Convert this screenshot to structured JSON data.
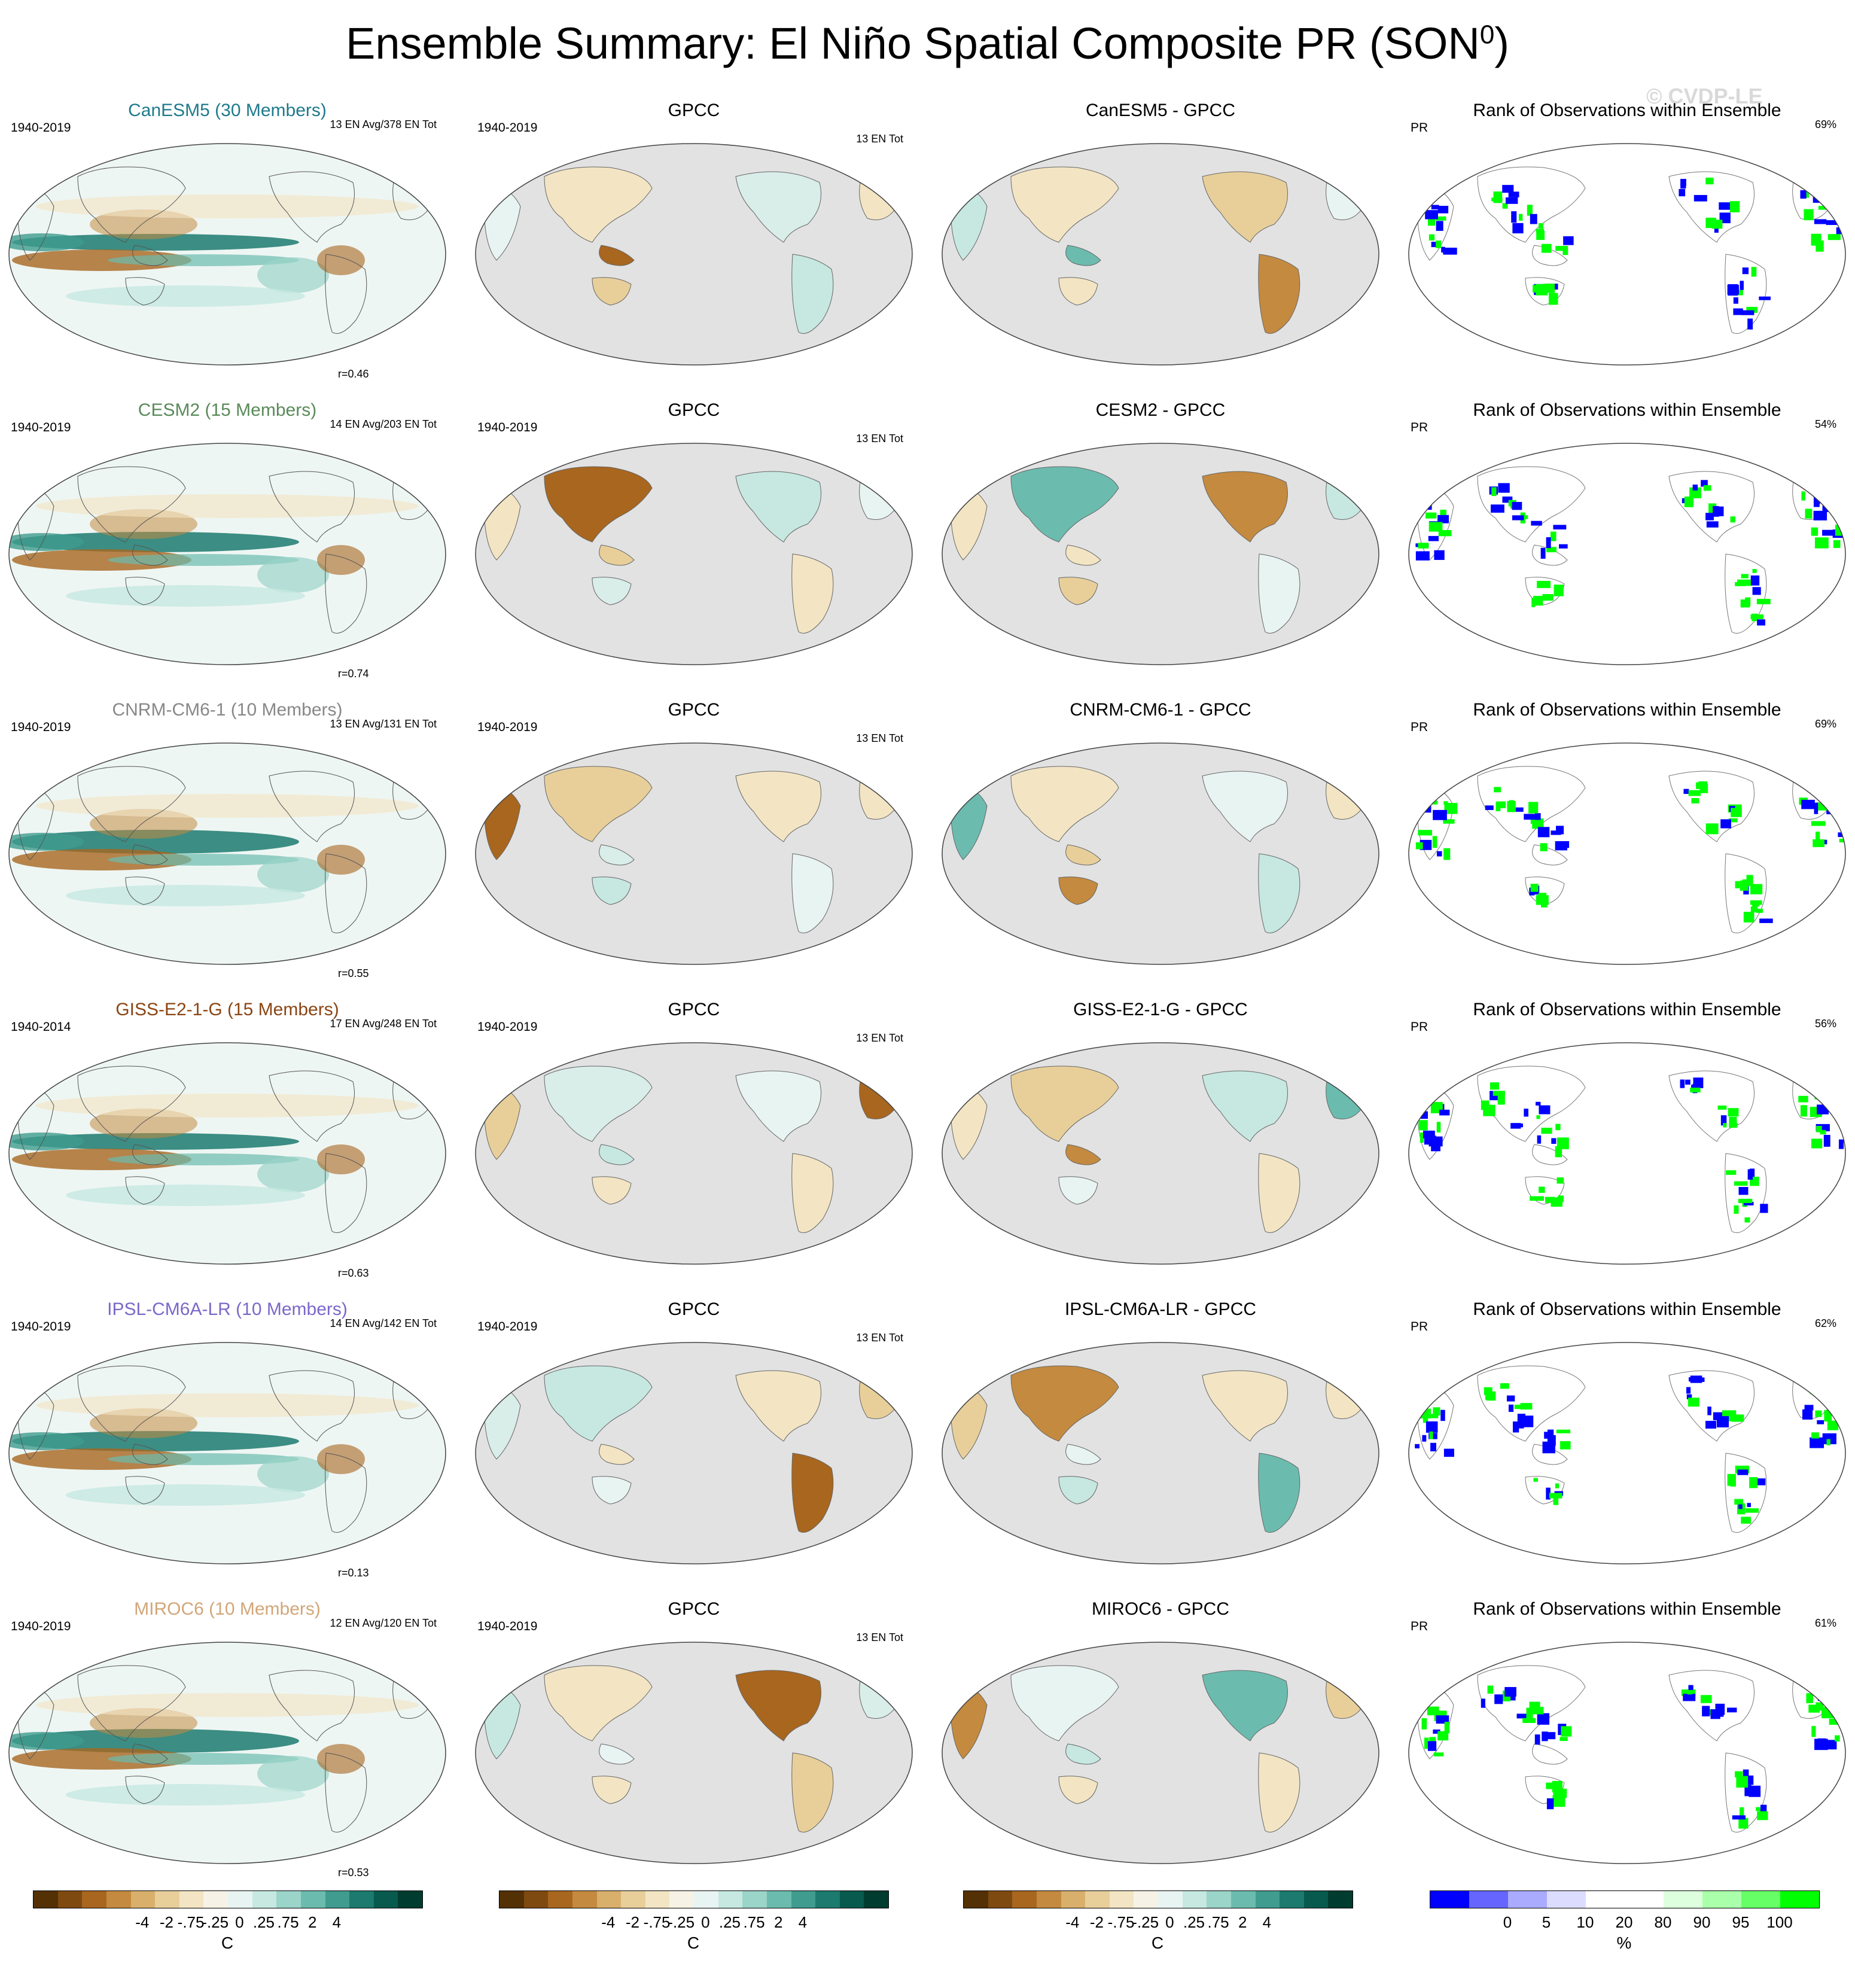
{
  "page": {
    "title_main": "Ensemble Summary: El Niño Spatial Composite PR (SON",
    "title_sup": "0",
    "title_end": ")",
    "watermark": "© CVDP-LE"
  },
  "rows": [
    {
      "model_title": "CanESM5 (30 Members)",
      "model_color": "#1f7a8c",
      "period": "1940-2019",
      "en_line1": "13 EN Avg/378 EN Tot",
      "corr": "r=0.46",
      "obs_title": "GPCC",
      "obs_period": "1940-2019",
      "obs_count": "13 EN Tot",
      "diff_title": "CanESM5 - GPCC",
      "rank_title": "Rank of Observations within Ensemble",
      "rank_var": "PR",
      "rank_pct": "69%"
    },
    {
      "model_title": "CESM2 (15 Members)",
      "model_color": "#5a8a5a",
      "period": "1940-2019",
      "en_line1": "14 EN Avg/203 EN Tot",
      "corr": "r=0.74",
      "obs_title": "GPCC",
      "obs_period": "1940-2019",
      "obs_count": "13 EN Tot",
      "diff_title": "CESM2 - GPCC",
      "rank_title": "Rank of Observations within Ensemble",
      "rank_var": "PR",
      "rank_pct": "54%"
    },
    {
      "model_title": "CNRM-CM6-1 (10 Members)",
      "model_color": "#888888",
      "period": "1940-2019",
      "en_line1": "13 EN Avg/131 EN Tot",
      "corr": "r=0.55",
      "obs_title": "GPCC",
      "obs_period": "1940-2019",
      "obs_count": "13 EN Tot",
      "diff_title": "CNRM-CM6-1 - GPCC",
      "rank_title": "Rank of Observations within Ensemble",
      "rank_var": "PR",
      "rank_pct": "69%"
    },
    {
      "model_title": "GISS-E2-1-G (15 Members)",
      "model_color": "#8b4513",
      "period": "1940-2014",
      "en_line1": "17 EN Avg/248 EN Tot",
      "corr": "r=0.63",
      "obs_title": "GPCC",
      "obs_period": "1940-2019",
      "obs_count": "13 EN Tot",
      "diff_title": "GISS-E2-1-G - GPCC",
      "rank_title": "Rank of Observations within Ensemble",
      "rank_var": "PR",
      "rank_pct": "56%"
    },
    {
      "model_title": "IPSL-CM6A-LR (10 Members)",
      "model_color": "#7b68c8",
      "period": "1940-2019",
      "en_line1": "14 EN Avg/142 EN Tot",
      "corr": "r=0.13",
      "obs_title": "GPCC",
      "obs_period": "1940-2019",
      "obs_count": "13 EN Tot",
      "diff_title": "IPSL-CM6A-LR - GPCC",
      "rank_title": "Rank of Observations within Ensemble",
      "rank_var": "PR",
      "rank_pct": "62%"
    },
    {
      "model_title": "MIROC6 (10 Members)",
      "model_color": "#d2a679",
      "period": "1940-2019",
      "en_line1": "12 EN Avg/120 EN Tot",
      "corr": "r=0.53",
      "obs_title": "GPCC",
      "obs_period": "1940-2019",
      "obs_count": "13 EN Tot",
      "diff_title": "MIROC6 - GPCC",
      "rank_title": "Rank of Observations within Ensemble",
      "rank_var": "PR",
      "rank_pct": "61%"
    }
  ],
  "colorbars": {
    "brbg": {
      "colors": [
        "#543005",
        "#7f4a10",
        "#a8661f",
        "#c48a3f",
        "#d8b06c",
        "#e8cf9a",
        "#f3e5c3",
        "#f7f2e6",
        "#e8f4f2",
        "#c6e8e1",
        "#9bd4c9",
        "#6bbcae",
        "#3f9c8f",
        "#1c7a6e",
        "#085a4e",
        "#003c30"
      ],
      "ticks": [
        "-4",
        "-2",
        "-.75",
        "-.25",
        "0",
        ".25",
        ".75",
        "2",
        "4"
      ],
      "unit": "C"
    },
    "rank": {
      "colors": [
        "#0000ff",
        "#6666ff",
        "#aaaaff",
        "#dcdcff",
        "#ffffff",
        "#ffffff",
        "#ddffdd",
        "#aaffaa",
        "#66ff66",
        "#00ff00"
      ],
      "ticks": [
        "0",
        "5",
        "10",
        "20",
        "80",
        "90",
        "95",
        "100"
      ],
      "unit": "%"
    }
  }
}
